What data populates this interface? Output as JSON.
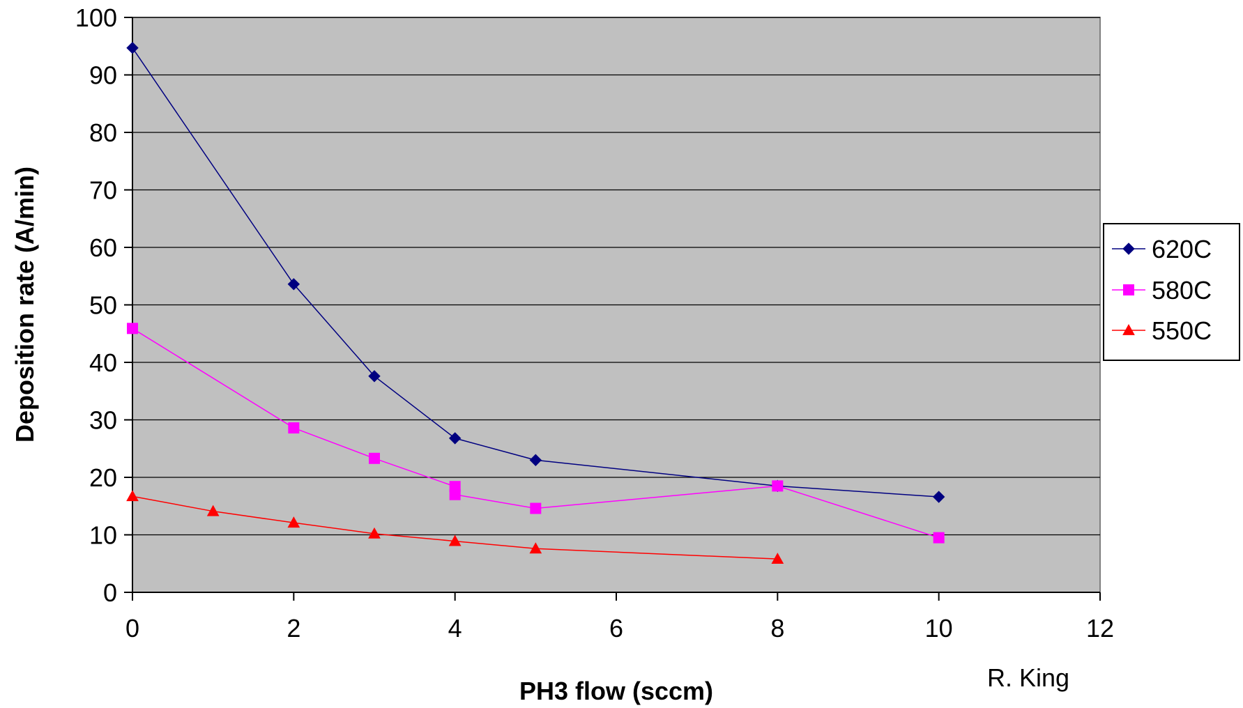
{
  "chart_data": {
    "type": "line",
    "title": "",
    "xlabel": "PH3 flow (sccm)",
    "ylabel": "Deposition rate (A/min)",
    "xlim": [
      0,
      12
    ],
    "ylim": [
      0,
      100
    ],
    "xticks": [
      0,
      2,
      4,
      6,
      8,
      10,
      12
    ],
    "yticks": [
      0,
      10,
      20,
      30,
      40,
      50,
      60,
      70,
      80,
      90,
      100
    ],
    "grid": "horizontal",
    "plot_background": "#c0c0c0",
    "legend_position": "right",
    "credit": "R. King",
    "series": [
      {
        "name": "620C",
        "color": "#000080",
        "marker": "diamond",
        "points": [
          {
            "x": 0,
            "y": 94.7
          },
          {
            "x": 2,
            "y": 53.6
          },
          {
            "x": 3,
            "y": 37.6
          },
          {
            "x": 4,
            "y": 26.8
          },
          {
            "x": 5,
            "y": 23.0
          },
          {
            "x": 8,
            "y": 18.5
          },
          {
            "x": 10,
            "y": 16.6
          }
        ]
      },
      {
        "name": "580C",
        "color": "#ff00ff",
        "marker": "square",
        "points": [
          {
            "x": 0,
            "y": 45.9
          },
          {
            "x": 2,
            "y": 28.6
          },
          {
            "x": 3,
            "y": 23.3
          },
          {
            "x": 4,
            "y": 18.4
          },
          {
            "x": 4,
            "y": 17.0
          },
          {
            "x": 5,
            "y": 14.6
          },
          {
            "x": 8,
            "y": 18.5
          },
          {
            "x": 10,
            "y": 9.5
          }
        ]
      },
      {
        "name": "550C",
        "color": "#ff0000",
        "marker": "triangle",
        "points": [
          {
            "x": 0,
            "y": 16.7
          },
          {
            "x": 1,
            "y": 14.1
          },
          {
            "x": 2,
            "y": 12.1
          },
          {
            "x": 3,
            "y": 10.2
          },
          {
            "x": 4,
            "y": 8.9
          },
          {
            "x": 5,
            "y": 7.6
          },
          {
            "x": 8,
            "y": 5.8
          }
        ]
      }
    ]
  }
}
